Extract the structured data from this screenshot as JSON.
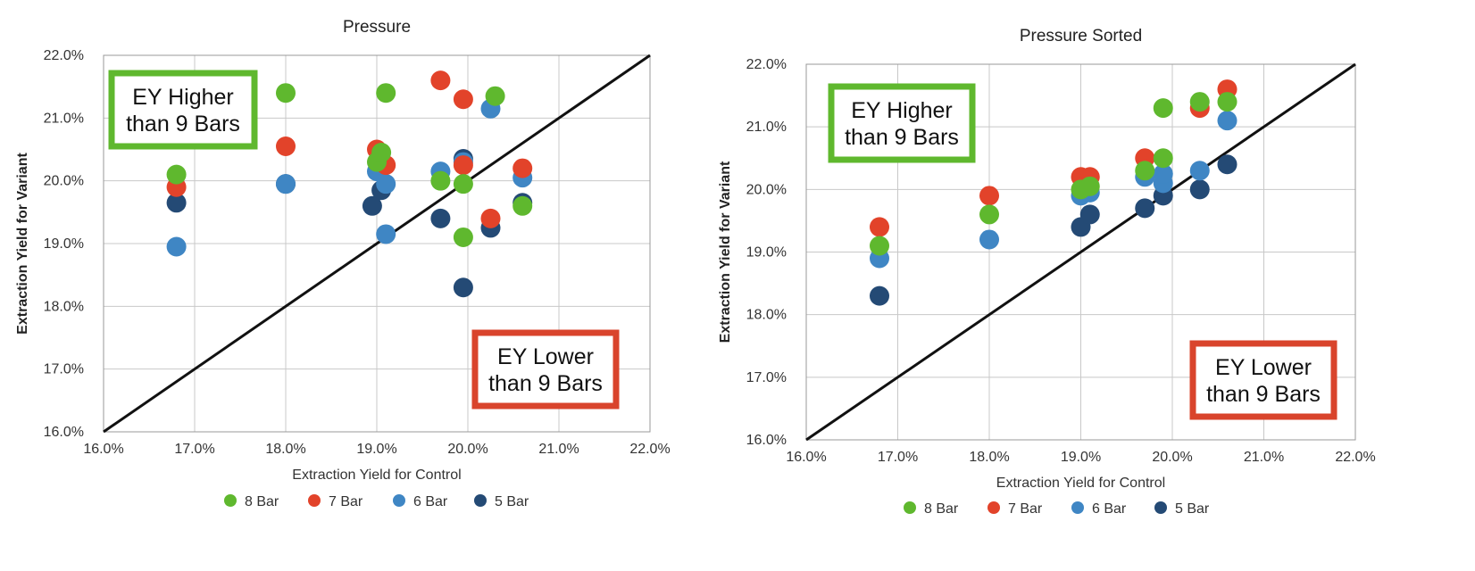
{
  "colors": {
    "8 Bar": "#5fb82e",
    "7 Bar": "#e2432a",
    "6 Bar": "#3f86c4",
    "5 Bar": "#244a75",
    "higher_box": "#5fb82e",
    "lower_box": "#d9442c"
  },
  "annotations": {
    "higher_line1": "EY Higher",
    "higher_line2": "than 9 Bars",
    "lower_line1": "EY Lower",
    "lower_line2": "than 9 Bars"
  },
  "chart_data": [
    {
      "type": "scatter",
      "title": "Pressure",
      "xlabel": "Extraction Yield for Control",
      "ylabel": "Extraction Yield for Variant",
      "xlim": [
        16.0,
        22.0
      ],
      "ylim": [
        16.0,
        22.0
      ],
      "x_ticks": [
        "16.0%",
        "17.0%",
        "18.0%",
        "19.0%",
        "20.0%",
        "21.0%",
        "22.0%"
      ],
      "y_ticks": [
        "16.0%",
        "17.0%",
        "18.0%",
        "19.0%",
        "20.0%",
        "21.0%",
        "22.0%"
      ],
      "grid": true,
      "legend_position": "bottom",
      "reference_line": [
        [
          16.0,
          16.0
        ],
        [
          22.0,
          22.0
        ]
      ],
      "series": [
        {
          "name": "8 Bar",
          "points": [
            [
              16.8,
              20.1
            ],
            [
              18.0,
              21.4
            ],
            [
              19.1,
              21.4
            ],
            [
              19.0,
              20.3
            ],
            [
              19.05,
              20.45
            ],
            [
              19.7,
              20.0
            ],
            [
              19.95,
              19.95
            ],
            [
              19.95,
              19.1
            ],
            [
              20.3,
              21.35
            ],
            [
              20.6,
              19.6
            ]
          ]
        },
        {
          "name": "7 Bar",
          "points": [
            [
              16.8,
              19.9
            ],
            [
              18.0,
              20.55
            ],
            [
              19.0,
              20.5
            ],
            [
              19.1,
              20.25
            ],
            [
              19.7,
              21.6
            ],
            [
              19.95,
              21.3
            ],
            [
              19.95,
              20.25
            ],
            [
              20.25,
              19.4
            ],
            [
              20.6,
              20.2
            ]
          ]
        },
        {
          "name": "6 Bar",
          "points": [
            [
              16.8,
              18.95
            ],
            [
              18.0,
              19.95
            ],
            [
              19.0,
              20.15
            ],
            [
              19.1,
              19.15
            ],
            [
              19.1,
              19.95
            ],
            [
              19.7,
              20.15
            ],
            [
              19.95,
              20.3
            ],
            [
              20.25,
              21.15
            ],
            [
              20.6,
              20.05
            ]
          ]
        },
        {
          "name": "5 Bar",
          "points": [
            [
              16.8,
              19.65
            ],
            [
              18.0,
              19.95
            ],
            [
              18.95,
              19.6
            ],
            [
              19.05,
              19.85
            ],
            [
              19.7,
              19.4
            ],
            [
              19.95,
              20.35
            ],
            [
              19.95,
              18.3
            ],
            [
              20.25,
              19.25
            ],
            [
              20.6,
              19.65
            ]
          ]
        }
      ]
    },
    {
      "type": "scatter",
      "title": "Pressure Sorted",
      "xlabel": "Extraction Yield for Control",
      "ylabel": "Extraction Yield for Variant",
      "xlim": [
        16.0,
        22.0
      ],
      "ylim": [
        16.0,
        22.0
      ],
      "x_ticks": [
        "16.0%",
        "17.0%",
        "18.0%",
        "19.0%",
        "20.0%",
        "21.0%",
        "22.0%"
      ],
      "y_ticks": [
        "16.0%",
        "17.0%",
        "18.0%",
        "19.0%",
        "20.0%",
        "21.0%",
        "22.0%"
      ],
      "grid": true,
      "legend_position": "bottom",
      "reference_line": [
        [
          16.0,
          16.0
        ],
        [
          22.0,
          22.0
        ]
      ],
      "series": [
        {
          "name": "8 Bar",
          "points": [
            [
              16.8,
              19.1
            ],
            [
              18.0,
              19.6
            ],
            [
              19.0,
              20.0
            ],
            [
              19.1,
              20.05
            ],
            [
              19.7,
              20.3
            ],
            [
              19.9,
              20.5
            ],
            [
              19.9,
              21.3
            ],
            [
              20.3,
              21.4
            ],
            [
              20.6,
              21.4
            ]
          ]
        },
        {
          "name": "7 Bar",
          "points": [
            [
              16.8,
              19.4
            ],
            [
              18.0,
              19.9
            ],
            [
              19.0,
              20.2
            ],
            [
              19.1,
              20.2
            ],
            [
              19.7,
              20.5
            ],
            [
              20.3,
              21.3
            ],
            [
              20.6,
              21.6
            ]
          ]
        },
        {
          "name": "6 Bar",
          "points": [
            [
              16.8,
              18.9
            ],
            [
              18.0,
              19.2
            ],
            [
              19.0,
              19.9
            ],
            [
              19.1,
              19.95
            ],
            [
              19.7,
              20.2
            ],
            [
              19.9,
              20.1
            ],
            [
              19.9,
              20.25
            ],
            [
              20.3,
              20.3
            ],
            [
              20.6,
              21.1
            ]
          ]
        },
        {
          "name": "5 Bar",
          "points": [
            [
              16.8,
              18.3
            ],
            [
              19.0,
              19.4
            ],
            [
              19.1,
              19.6
            ],
            [
              19.7,
              19.7
            ],
            [
              19.9,
              19.9
            ],
            [
              20.3,
              20.0
            ],
            [
              20.6,
              20.4
            ]
          ]
        }
      ]
    }
  ]
}
